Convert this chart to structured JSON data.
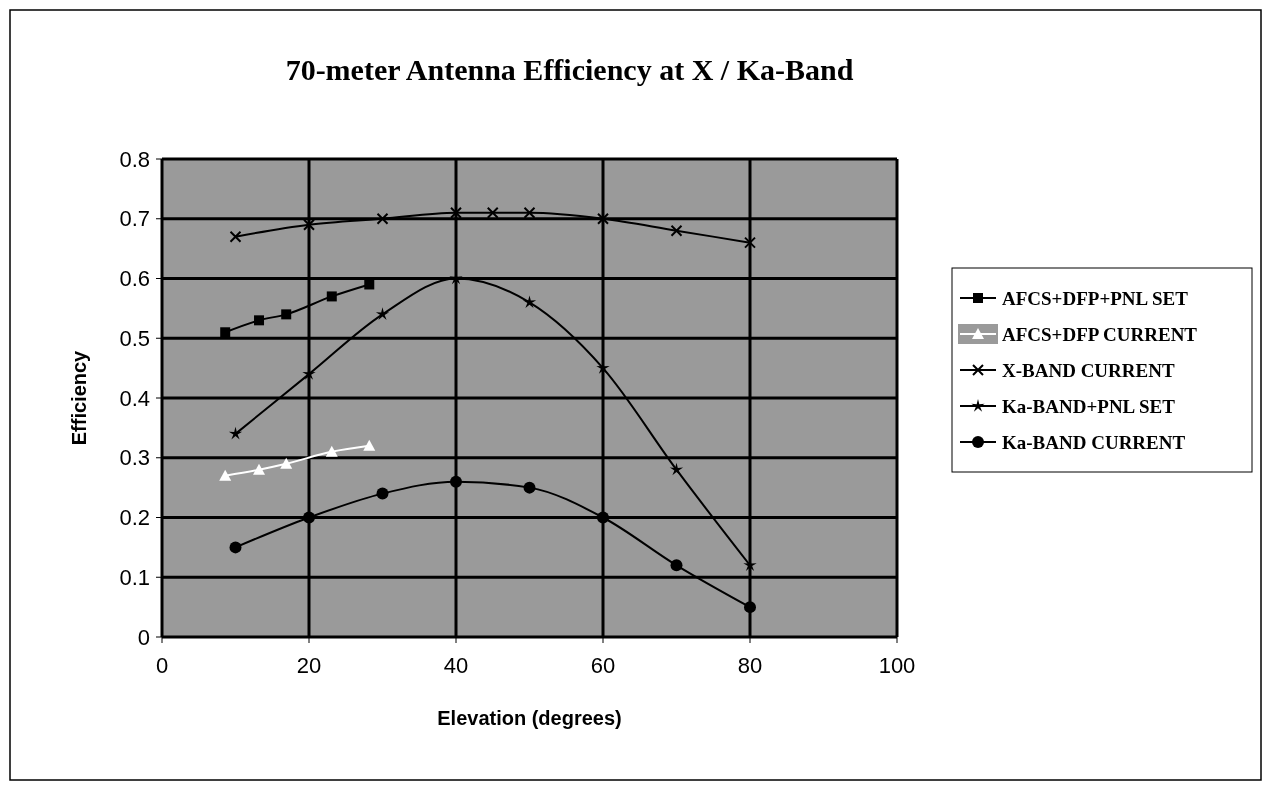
{
  "chart_data": {
    "type": "line",
    "title": "70-meter Antenna Efficiency at X / Ka-Band",
    "xlabel": "Elevation (degrees)",
    "ylabel": "Efficiency",
    "xlim": [
      0,
      100
    ],
    "xticks": [
      0,
      20,
      40,
      60,
      80,
      100
    ],
    "ylim": [
      0,
      0.8
    ],
    "yticks": [
      0,
      0.1,
      0.2,
      0.3,
      0.4,
      0.5,
      0.6,
      0.7,
      0.8
    ],
    "grid": true,
    "legend": "right",
    "series": [
      {
        "name": "AFCS+DFP+PNL SET",
        "color": "#000000",
        "marker": "square",
        "x": [
          8.6,
          13.2,
          16.9,
          23.1,
          28.2
        ],
        "values": [
          0.51,
          0.53,
          0.54,
          0.57,
          0.59
        ]
      },
      {
        "name": "AFCS+DFP CURRENT",
        "color": "#ffffff",
        "marker": "triangle",
        "x": [
          8.6,
          13.2,
          16.9,
          23.1,
          28.2
        ],
        "values": [
          0.27,
          0.28,
          0.29,
          0.31,
          0.32
        ]
      },
      {
        "name": "X-BAND CURRENT",
        "color": "#000000",
        "marker": "cross",
        "x": [
          10,
          20,
          30,
          40,
          45,
          50,
          60,
          70,
          80
        ],
        "values": [
          0.67,
          0.69,
          0.7,
          0.71,
          0.71,
          0.71,
          0.7,
          0.68,
          0.66
        ]
      },
      {
        "name": "Ka-BAND+PNL SET",
        "color": "#000000",
        "marker": "star",
        "x": [
          10,
          20,
          30,
          40,
          50,
          60,
          70,
          80
        ],
        "values": [
          0.34,
          0.44,
          0.54,
          0.6,
          0.56,
          0.45,
          0.28,
          0.12
        ]
      },
      {
        "name": "Ka-BAND CURRENT",
        "color": "#000000",
        "marker": "circle",
        "x": [
          10,
          20,
          30,
          40,
          50,
          60,
          70,
          80
        ],
        "values": [
          0.15,
          0.2,
          0.24,
          0.26,
          0.25,
          0.2,
          0.12,
          0.05
        ]
      }
    ]
  }
}
